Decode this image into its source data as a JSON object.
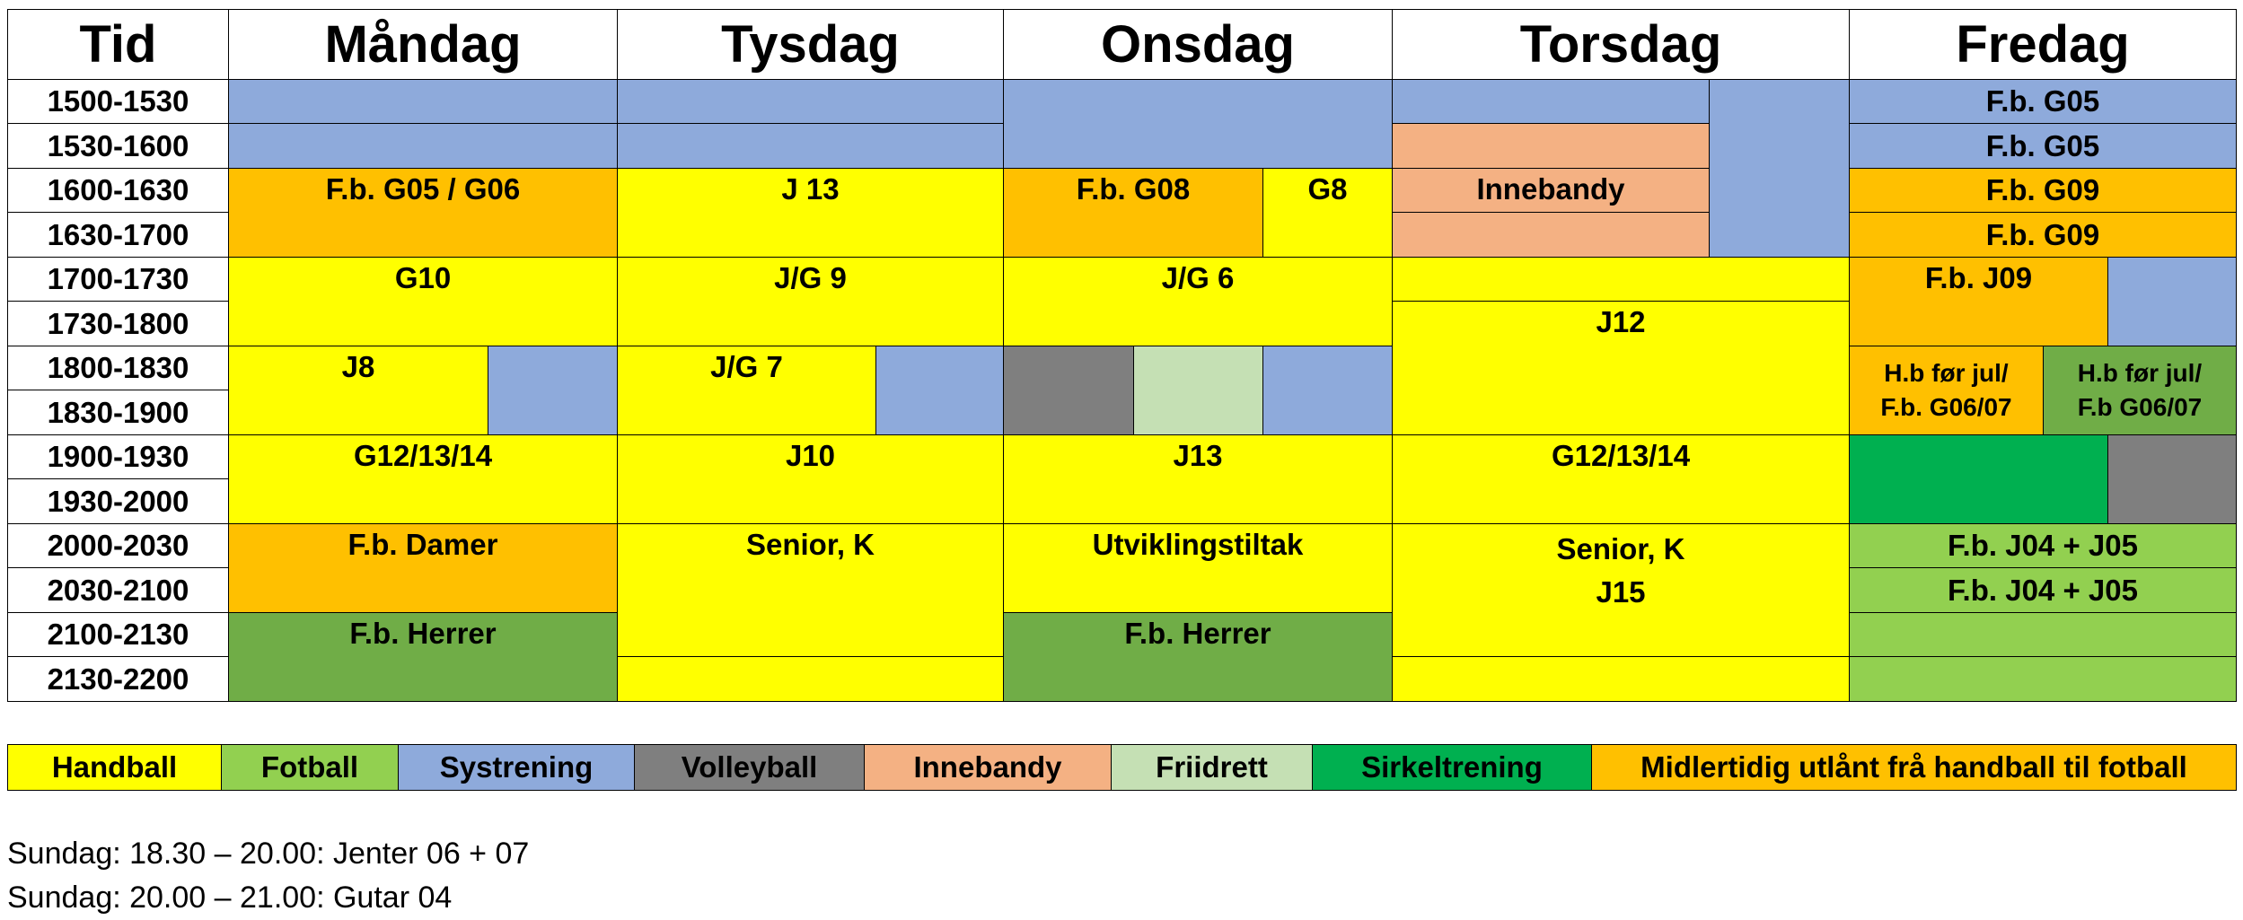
{
  "colors": {
    "handball": "#ffff00",
    "fotball": "#92d050",
    "systrening": "#8eaadb",
    "volleyball": "#7f7f7f",
    "innebandy": "#f4b183",
    "friidrett": "#c5e0b4",
    "sirkeltrening": "#00b050",
    "utlant": "#ffc000",
    "fb_herrer": "#70ad47"
  },
  "header": {
    "tid": "Tid",
    "days": [
      "Måndag",
      "Tysdag",
      "Onsdag",
      "Torsdag",
      "Fredag"
    ]
  },
  "times": [
    "1500-1530",
    "1530-1600",
    "1600-1630",
    "1630-1700",
    "1700-1730",
    "1730-1800",
    "1800-1830",
    "1830-1900",
    "1900-1930",
    "1930-2000",
    "2000-2030",
    "2030-2100",
    "2100-2130",
    "2130-2200"
  ],
  "schedule": {
    "mandag": {
      "fb_g05_g06": "F.b. G05 / G06",
      "g10": "G10",
      "j8": "J8",
      "g12_13_14": "G12/13/14",
      "fb_damer": "F.b. Damer",
      "fb_herrer": "F.b. Herrer"
    },
    "tysdag": {
      "j13": "J 13",
      "jg9": "J/G 9",
      "jg7": "J/G 7",
      "j10": "J10",
      "senior_k": "Senior, K"
    },
    "onsdag": {
      "fb_g08": "F.b. G08",
      "g8": "G8",
      "jg6": "J/G 6",
      "j13": "J13",
      "utviklingstiltak": "Utviklingstiltak",
      "fb_herrer": "F.b. Herrer"
    },
    "torsdag": {
      "innebandy": "Innebandy",
      "j12": "J12",
      "g12_13_14": "G12/13/14",
      "senior_k": "Senior, K",
      "j15": "J15"
    },
    "fredag": {
      "fb_g05_a": "F.b. G05",
      "fb_g05_b": "F.b. G05",
      "fb_g09_a": "F.b. G09",
      "fb_g09_b": "F.b. G09",
      "fb_j09": "F.b. J09",
      "hb_left_1": "H.b før jul/",
      "hb_left_2": "F.b. G06/07",
      "hb_right_1": "H.b før jul/",
      "hb_right_2": "F.b G06/07",
      "fb_j04_j05_a": "F.b. J04 + J05",
      "fb_j04_j05_b": "F.b. J04 + J05"
    }
  },
  "legend": [
    "Handball",
    "Fotball",
    "Systrening",
    "Volleyball",
    "Innebandy",
    "Friidrett",
    "Sirkeltrening",
    "Midlertidig utlånt frå handball til fotball"
  ],
  "notes": [
    "Sundag: 18.30 – 20.00: Jenter 06 + 07",
    "Sundag: 20.00 – 21.00: Gutar 04"
  ]
}
